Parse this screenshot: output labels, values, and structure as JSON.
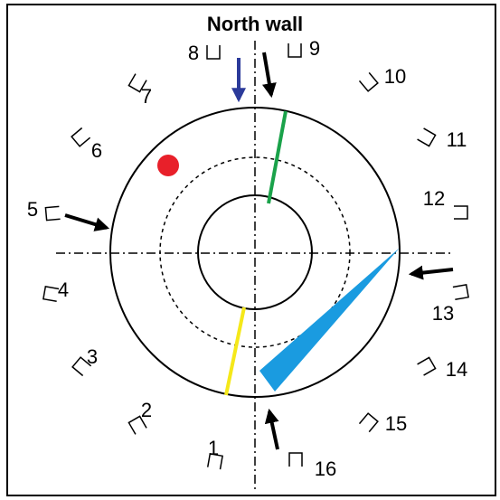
{
  "title": "North wall",
  "sensors": [
    {
      "label": "1"
    },
    {
      "label": "2"
    },
    {
      "label": "3"
    },
    {
      "label": "4"
    },
    {
      "label": "5"
    },
    {
      "label": "6"
    },
    {
      "label": "7"
    },
    {
      "label": "8"
    },
    {
      "label": "9"
    },
    {
      "label": "10"
    },
    {
      "label": "11"
    },
    {
      "label": "12"
    },
    {
      "label": "13"
    },
    {
      "label": "14"
    },
    {
      "label": "15"
    },
    {
      "label": "16"
    }
  ]
}
